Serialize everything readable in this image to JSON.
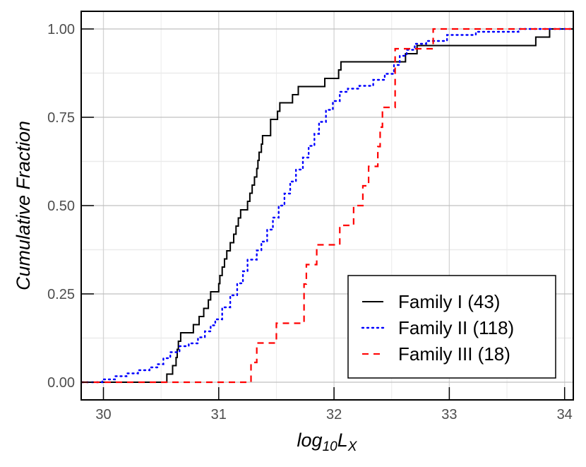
{
  "chart_data": {
    "type": "line",
    "subtype": "empirical-cdf-step",
    "title": "",
    "xlabel": "log10 L_X",
    "xlabel_parts": {
      "base": "log",
      "sub": "10",
      "var": "L",
      "var_sub": "X"
    },
    "ylabel": "Cumulative Fraction",
    "xlim": [
      29.81,
      34.08
    ],
    "ylim": [
      -0.05,
      1.05
    ],
    "x_ticks": [
      30,
      31,
      32,
      33,
      34
    ],
    "x_tick_labels": [
      "30",
      "31",
      "32",
      "33",
      "34"
    ],
    "y_ticks": [
      0.0,
      0.25,
      0.5,
      0.75,
      1.0
    ],
    "y_tick_labels": [
      "0.00",
      "0.25",
      "0.50",
      "0.75",
      "1.00"
    ],
    "grid": true,
    "legend_position": "lower right",
    "series": [
      {
        "name": "Family I (43)",
        "color": "#000000",
        "linestyle": "solid",
        "steps": [
          [
            29.81,
            0.0
          ],
          [
            30.55,
            0.023
          ],
          [
            30.6,
            0.047
          ],
          [
            30.63,
            0.07
          ],
          [
            30.64,
            0.093
          ],
          [
            30.65,
            0.116
          ],
          [
            30.67,
            0.14
          ],
          [
            30.78,
            0.163
          ],
          [
            30.83,
            0.186
          ],
          [
            30.87,
            0.209
          ],
          [
            30.91,
            0.233
          ],
          [
            30.93,
            0.256
          ],
          [
            31.0,
            0.279
          ],
          [
            31.01,
            0.302
          ],
          [
            31.03,
            0.326
          ],
          [
            31.05,
            0.349
          ],
          [
            31.07,
            0.372
          ],
          [
            31.1,
            0.395
          ],
          [
            31.13,
            0.419
          ],
          [
            31.15,
            0.442
          ],
          [
            31.17,
            0.465
          ],
          [
            31.19,
            0.488
          ],
          [
            31.25,
            0.512
          ],
          [
            31.27,
            0.535
          ],
          [
            31.29,
            0.558
          ],
          [
            31.31,
            0.581
          ],
          [
            31.33,
            0.605
          ],
          [
            31.34,
            0.628
          ],
          [
            31.35,
            0.651
          ],
          [
            31.37,
            0.674
          ],
          [
            31.38,
            0.698
          ],
          [
            31.45,
            0.744
          ],
          [
            31.51,
            0.767
          ],
          [
            31.53,
            0.791
          ],
          [
            31.64,
            0.814
          ],
          [
            31.69,
            0.837
          ],
          [
            31.92,
            0.86
          ],
          [
            32.04,
            0.884
          ],
          [
            32.06,
            0.907
          ],
          [
            32.62,
            0.93
          ],
          [
            32.72,
            0.953
          ],
          [
            33.75,
            0.977
          ],
          [
            33.87,
            1.0
          ],
          [
            34.08,
            1.0
          ]
        ]
      },
      {
        "name": "Family II (118)",
        "color": "#0000ff",
        "linestyle": "dotted",
        "steps": [
          [
            29.81,
            0.0
          ],
          [
            29.99,
            0.008
          ],
          [
            30.1,
            0.017
          ],
          [
            30.2,
            0.025
          ],
          [
            30.3,
            0.034
          ],
          [
            30.4,
            0.042
          ],
          [
            30.47,
            0.051
          ],
          [
            30.52,
            0.068
          ],
          [
            30.58,
            0.085
          ],
          [
            30.66,
            0.102
          ],
          [
            30.74,
            0.11
          ],
          [
            30.82,
            0.127
          ],
          [
            30.88,
            0.144
          ],
          [
            30.93,
            0.161
          ],
          [
            30.97,
            0.178
          ],
          [
            31.03,
            0.212
          ],
          [
            31.1,
            0.246
          ],
          [
            31.16,
            0.28
          ],
          [
            31.21,
            0.314
          ],
          [
            31.25,
            0.347
          ],
          [
            31.33,
            0.373
          ],
          [
            31.37,
            0.398
          ],
          [
            31.42,
            0.432
          ],
          [
            31.47,
            0.466
          ],
          [
            31.52,
            0.5
          ],
          [
            31.57,
            0.534
          ],
          [
            31.62,
            0.568
          ],
          [
            31.67,
            0.602
          ],
          [
            31.73,
            0.636
          ],
          [
            31.78,
            0.669
          ],
          [
            31.83,
            0.703
          ],
          [
            31.87,
            0.737
          ],
          [
            31.93,
            0.771
          ],
          [
            31.99,
            0.796
          ],
          [
            32.05,
            0.822
          ],
          [
            32.12,
            0.831
          ],
          [
            32.22,
            0.839
          ],
          [
            32.34,
            0.856
          ],
          [
            32.44,
            0.873
          ],
          [
            32.52,
            0.898
          ],
          [
            32.57,
            0.924
          ],
          [
            32.63,
            0.941
          ],
          [
            32.7,
            0.958
          ],
          [
            32.8,
            0.966
          ],
          [
            32.98,
            0.983
          ],
          [
            33.23,
            0.992
          ],
          [
            33.6,
            1.0
          ],
          [
            34.08,
            1.0
          ]
        ]
      },
      {
        "name": "Family III (18)",
        "color": "#ff0000",
        "linestyle": "dashed",
        "steps": [
          [
            29.81,
            0.0
          ],
          [
            31.28,
            0.056
          ],
          [
            31.33,
            0.111
          ],
          [
            31.5,
            0.167
          ],
          [
            31.74,
            0.278
          ],
          [
            31.76,
            0.333
          ],
          [
            31.85,
            0.389
          ],
          [
            32.05,
            0.444
          ],
          [
            32.17,
            0.5
          ],
          [
            32.25,
            0.556
          ],
          [
            32.3,
            0.611
          ],
          [
            32.38,
            0.667
          ],
          [
            32.4,
            0.722
          ],
          [
            32.42,
            0.778
          ],
          [
            32.53,
            0.944
          ],
          [
            32.86,
            1.0
          ],
          [
            34.08,
            1.0
          ]
        ]
      }
    ]
  },
  "legend": {
    "items": [
      {
        "label": "Family I (43)",
        "color": "#000000",
        "dash": "solid"
      },
      {
        "label": "Family II (118)",
        "color": "#0000ff",
        "dash": "dotted"
      },
      {
        "label": "Family III (18)",
        "color": "#ff0000",
        "dash": "dashed"
      }
    ]
  },
  "axes": {
    "ylabel": "Cumulative Fraction",
    "xlabel_base": "log",
    "xlabel_sub": "10",
    "xlabel_var": "L",
    "xlabel_var_sub": "X"
  }
}
